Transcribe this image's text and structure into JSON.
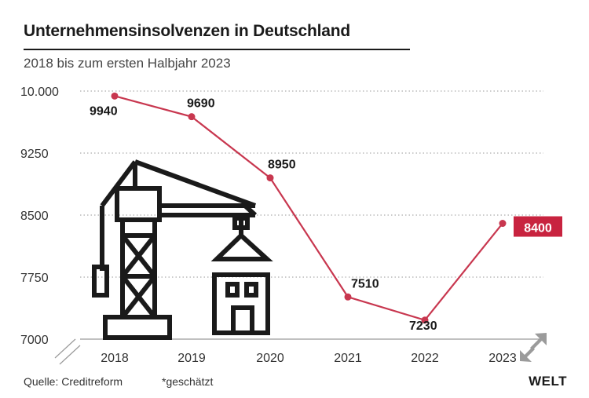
{
  "header": {
    "title": "Unternehmensinsolvenzen in Deutschland",
    "subtitle": "2018 bis zum ersten Halbjahr 2023"
  },
  "footer": {
    "source": "Quelle: Creditreform",
    "note": "*geschätzt",
    "logo": "WELT"
  },
  "colors": {
    "line": "#c8374f",
    "highlight_bg": "#c8233f",
    "grid": "#9a9a9a",
    "text": "#1a1a1a"
  },
  "icons": [
    "crane-icon",
    "building-icon",
    "expand-arrows-icon"
  ],
  "chart_data": {
    "type": "line",
    "title": "Unternehmensinsolvenzen in Deutschland",
    "subtitle": "2018 bis zum ersten Halbjahr 2023",
    "x": [
      "2018",
      "2019",
      "2020",
      "2021",
      "2022",
      "2023"
    ],
    "y": [
      9940,
      9690,
      8950,
      7510,
      7230,
      8400
    ],
    "data_labels": [
      "9940",
      "9690",
      "8950",
      "7510",
      "7230",
      "8400"
    ],
    "highlighted_index": 5,
    "yticks": [
      "10.000",
      "9250",
      "8500",
      "7750",
      "7000"
    ],
    "ytick_values": [
      10000,
      9250,
      8500,
      7750,
      7000
    ],
    "ylim": [
      7000,
      10000
    ],
    "xlabel": "",
    "ylabel": "",
    "grid": true,
    "legend": "none"
  }
}
